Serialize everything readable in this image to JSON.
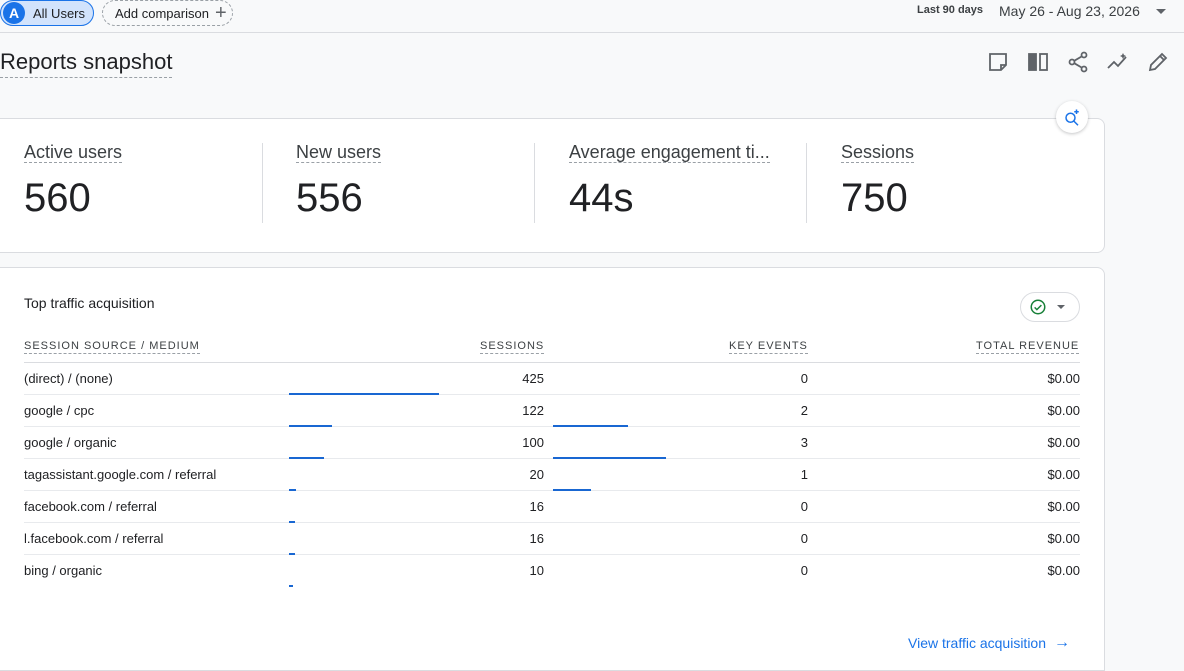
{
  "topbar": {
    "segment_badge": "A",
    "segment_label": "All Users",
    "add_comparison": "Add comparison",
    "date_label": "Last 90 days",
    "date_range": "May 26 - Aug 23, 2026"
  },
  "page": {
    "title": "Reports snapshot"
  },
  "toolbar_icons": [
    "note-icon",
    "compare-columns-icon",
    "share-icon",
    "insights-trend-icon",
    "edit-pencil-icon"
  ],
  "kpis": [
    {
      "label": "Active users",
      "value": "560"
    },
    {
      "label": "New users",
      "value": "556"
    },
    {
      "label": "Average engagement ti...",
      "value": "44s"
    },
    {
      "label": "Sessions",
      "value": "750"
    }
  ],
  "traffic": {
    "title": "Top traffic acquisition",
    "columns": [
      "SESSION SOURCE / MEDIUM",
      "SESSIONS",
      "KEY EVENTS",
      "TOTAL REVENUE"
    ],
    "rows": [
      {
        "source": "(direct) / (none)",
        "sessions": "425",
        "key_events": "0",
        "revenue": "$0.00",
        "sessions_frac": 1.0,
        "events_frac": 0
      },
      {
        "source": "google / cpc",
        "sessions": "122",
        "key_events": "2",
        "revenue": "$0.00",
        "sessions_frac": 0.287,
        "events_frac": 0.667
      },
      {
        "source": "google / organic",
        "sessions": "100",
        "key_events": "3",
        "revenue": "$0.00",
        "sessions_frac": 0.235,
        "events_frac": 1.0
      },
      {
        "source": "tagassistant.google.com / referral",
        "sessions": "20",
        "key_events": "1",
        "revenue": "$0.00",
        "sessions_frac": 0.047,
        "events_frac": 0.333
      },
      {
        "source": "facebook.com / referral",
        "sessions": "16",
        "key_events": "0",
        "revenue": "$0.00",
        "sessions_frac": 0.038,
        "events_frac": 0
      },
      {
        "source": "l.facebook.com / referral",
        "sessions": "16",
        "key_events": "0",
        "revenue": "$0.00",
        "sessions_frac": 0.038,
        "events_frac": 0
      },
      {
        "source": "bing / organic",
        "sessions": "10",
        "key_events": "0",
        "revenue": "$0.00",
        "sessions_frac": 0.024,
        "events_frac": 0
      }
    ],
    "view_link": "View traffic acquisition"
  },
  "colors": {
    "accent": "#1a73e8",
    "bar": "#1967d2",
    "check": "#188038"
  }
}
